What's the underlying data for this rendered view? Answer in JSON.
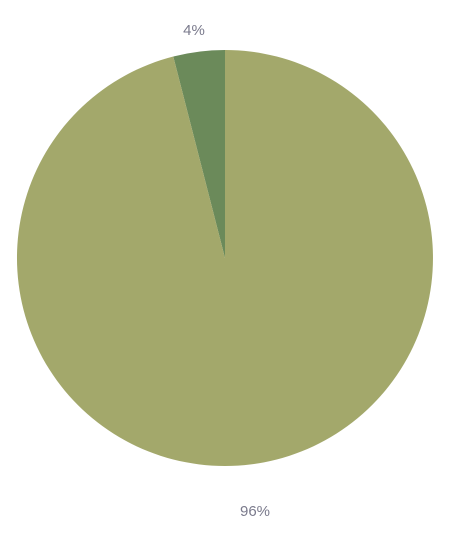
{
  "chart_data": {
    "type": "pie",
    "title": "",
    "slices": [
      {
        "label": "4%",
        "value": 4,
        "color": "#6b8a5a"
      },
      {
        "label": "96%",
        "value": 96,
        "color": "#a3a86b"
      }
    ],
    "start_angle_deg": -90,
    "direction": "counterclockwise",
    "legend": "none"
  }
}
